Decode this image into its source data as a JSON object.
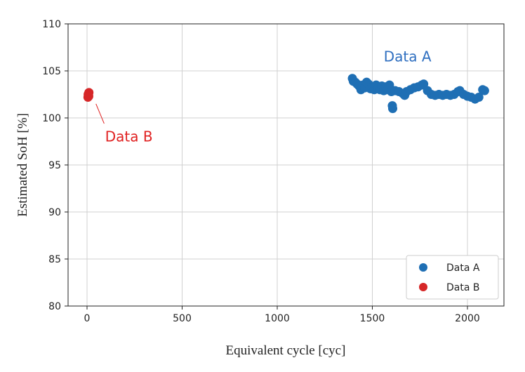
{
  "chart_data": {
    "type": "scatter",
    "xlabel": "Equivalent cycle [cyc]",
    "ylabel": "Estimated SoH [%]",
    "xlim": [
      -100,
      2200
    ],
    "ylim": [
      80,
      110
    ],
    "xticks": [
      0,
      500,
      1000,
      1500,
      2000
    ],
    "yticks": [
      80,
      85,
      90,
      95,
      100,
      105,
      110
    ],
    "grid": true,
    "legend_position": "bottom-right",
    "series": [
      {
        "name": "Data A",
        "color": "#1f6fb4",
        "x": [
          1395,
          1400,
          1410,
          1420,
          1430,
          1440,
          1450,
          1460,
          1470,
          1480,
          1490,
          1500,
          1510,
          1520,
          1530,
          1540,
          1550,
          1560,
          1570,
          1580,
          1590,
          1600,
          1605,
          1607,
          1620,
          1640,
          1660,
          1670,
          1680,
          1700,
          1720,
          1740,
          1760,
          1770,
          1790,
          1810,
          1830,
          1850,
          1870,
          1890,
          1910,
          1930,
          1950,
          1960,
          1980,
          2000,
          2020,
          2040,
          2060,
          2080,
          2090
        ],
        "y": [
          104.2,
          103.9,
          103.8,
          103.6,
          103.4,
          103.0,
          103.5,
          103.2,
          103.8,
          103.6,
          103.1,
          103.3,
          103.0,
          103.5,
          103.2,
          103.0,
          103.4,
          102.9,
          103.3,
          103.0,
          103.5,
          102.8,
          101.3,
          101.0,
          102.9,
          102.8,
          102.6,
          102.4,
          102.8,
          103.0,
          103.2,
          103.3,
          103.5,
          103.6,
          102.9,
          102.5,
          102.4,
          102.5,
          102.4,
          102.5,
          102.4,
          102.5,
          102.8,
          102.9,
          102.5,
          102.3,
          102.2,
          102.0,
          102.2,
          103.0,
          102.9
        ]
      },
      {
        "name": "Data B",
        "color": "#d62728",
        "x": [
          5,
          8,
          10,
          6,
          9
        ],
        "y": [
          102.2,
          102.4,
          102.7,
          102.5,
          102.3
        ]
      }
    ],
    "annotations": [
      {
        "text": "Data A",
        "x": 1560,
        "y": 106,
        "color": "#2f6fc0"
      },
      {
        "text": "Data B",
        "x": 95,
        "y": 97.5,
        "color": "#e02020"
      }
    ]
  }
}
